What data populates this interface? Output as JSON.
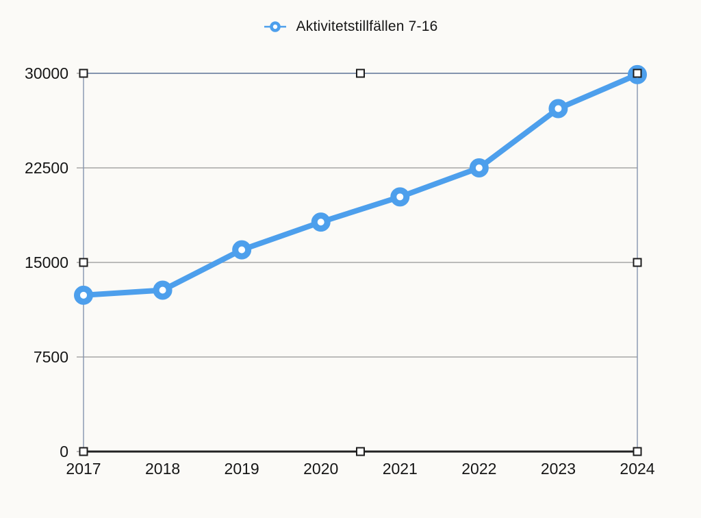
{
  "chart_data": {
    "type": "line",
    "title": "",
    "categories": [
      "2017",
      "2018",
      "2019",
      "2020",
      "2021",
      "2022",
      "2023",
      "2024"
    ],
    "series": [
      {
        "name": "Aktivitetstillfällen 7-16",
        "values": [
          12400,
          12800,
          16000,
          18200,
          20200,
          22500,
          27200,
          29900
        ]
      }
    ],
    "xlabel": "",
    "ylabel": "",
    "ylim": [
      0,
      30000
    ],
    "yticks": [
      0,
      7500,
      15000,
      22500,
      30000
    ],
    "grid": "horizontal",
    "legend_position": "top",
    "marker_style": "donut",
    "selection_handles": [
      "top-left",
      "top-center",
      "top-right",
      "mid-left",
      "mid-right",
      "bottom-left",
      "bottom-center",
      "bottom-right"
    ],
    "colors": {
      "series": "#4d9fec",
      "marker_fill": "#ffffff",
      "gridline": "#a6a6a6",
      "plot_border": "#8494ae",
      "axis": "#222222",
      "text": "#161616",
      "background": "#fbfaf7",
      "handle_fill": "#ffffff",
      "handle_stroke": "#1c1c1c"
    }
  }
}
